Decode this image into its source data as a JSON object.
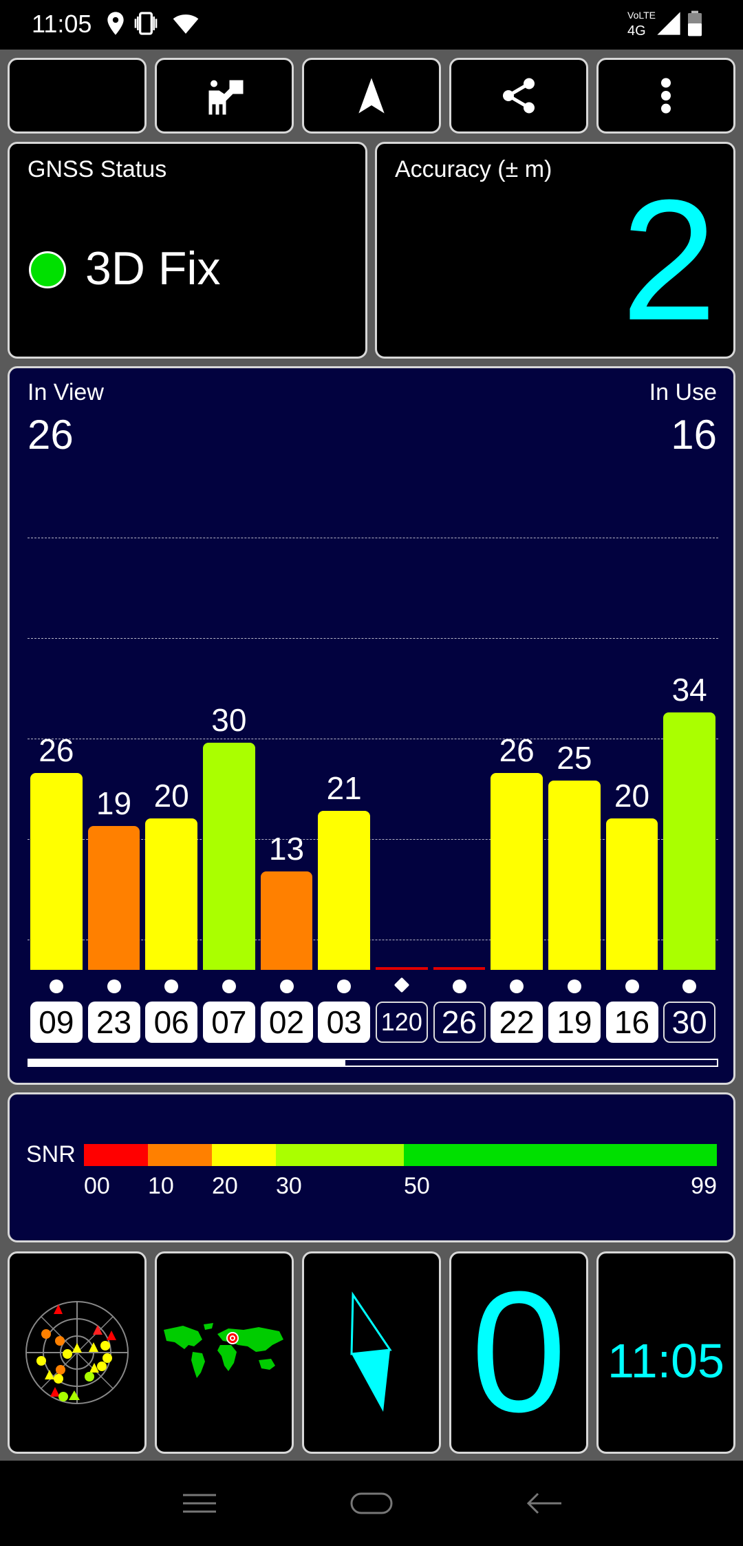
{
  "status_bar": {
    "time": "11:05",
    "network_label_top": "VoLTE",
    "network_label_bottom": "4G",
    "icons": [
      "location-icon",
      "vibrate-icon",
      "wifi-icon",
      "signal-icon",
      "battery-icon"
    ]
  },
  "toolbar": {
    "buttons": [
      "night-mode-icon",
      "presenter-icon",
      "navigation-arrow-icon",
      "share-icon",
      "more-vert-icon"
    ]
  },
  "gnss": {
    "title": "GNSS Status",
    "fix": "3D Fix",
    "fix_color": "#00e000"
  },
  "accuracy": {
    "title": "Accuracy (± m)",
    "value": "2",
    "value_color": "#00ffff"
  },
  "satellites": {
    "in_view_label": "In View",
    "in_view": "26",
    "in_use_label": "In Use",
    "in_use": "16",
    "scroll_fraction": 0.46
  },
  "chart_data": {
    "type": "bar",
    "categories": [
      "09",
      "23",
      "06",
      "07",
      "02",
      "03",
      "120",
      "26",
      "22",
      "19",
      "16",
      "30"
    ],
    "values": [
      26,
      19,
      20,
      30,
      13,
      21,
      0,
      0,
      26,
      25,
      20,
      34
    ],
    "value_labels": [
      "26",
      "19",
      "20",
      "30",
      "13",
      "21",
      "",
      "",
      "26",
      "25",
      "20",
      "34"
    ],
    "in_use": [
      true,
      true,
      true,
      true,
      true,
      true,
      false,
      false,
      true,
      true,
      true,
      false
    ],
    "markers": [
      "dot",
      "dot",
      "dot",
      "dot",
      "dot",
      "dot",
      "diamond",
      "dot",
      "dot",
      "dot",
      "dot",
      "dot"
    ],
    "ylim": [
      0,
      60
    ],
    "grid": true
  },
  "snr_legend": {
    "label": "SNR",
    "ticks": [
      "00",
      "10",
      "20",
      "30",
      "50",
      "99"
    ],
    "segments": [
      {
        "from": 0,
        "to": 10,
        "color": "#ff0000"
      },
      {
        "from": 10,
        "to": 20,
        "color": "#ff8000"
      },
      {
        "from": 20,
        "to": 30,
        "color": "#ffff00"
      },
      {
        "from": 30,
        "to": 50,
        "color": "#aaff00"
      },
      {
        "from": 50,
        "to": 99,
        "color": "#00e000"
      }
    ]
  },
  "bottom_widgets": {
    "compass_heading": "0",
    "clock": "11:05",
    "accent": "#00ffff"
  },
  "navigation_bar": {
    "icons": [
      "menu-icon",
      "home-icon",
      "back-icon"
    ]
  }
}
